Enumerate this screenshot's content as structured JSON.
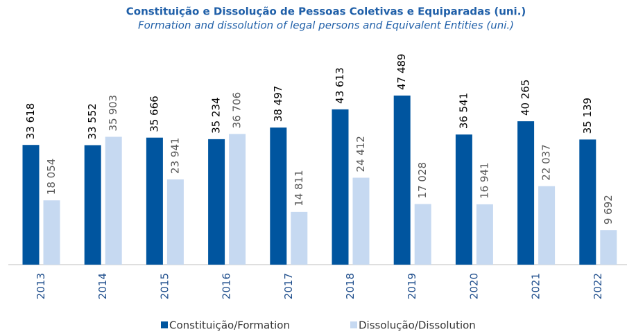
{
  "chart_data": {
    "type": "bar",
    "title": "Constituição e Dissolução de Pessoas Coletivas e Equiparadas (uni.)",
    "subtitle": "Formation and dissolution of legal persons and Equivalent Entities (uni.)",
    "categories": [
      "2013",
      "2014",
      "2015",
      "2016",
      "2017",
      "2018",
      "2019",
      "2020",
      "2021",
      "2022"
    ],
    "series": [
      {
        "name": "Constituição/Formation",
        "color": "#00559f",
        "values": [
          33618,
          33552,
          35666,
          35234,
          38497,
          43613,
          47489,
          36541,
          40265,
          35139
        ],
        "value_labels": [
          "33 618",
          "33 552",
          "35 666",
          "35 234",
          "38 497",
          "43 613",
          "47 489",
          "36 541",
          "40 265",
          "35 139"
        ]
      },
      {
        "name": "Dissolução/Dissolution",
        "color": "#c6d9f1",
        "values": [
          18054,
          35903,
          23941,
          36706,
          14811,
          24412,
          17028,
          16941,
          22037,
          9692
        ],
        "value_labels": [
          "18 054",
          "35 903",
          "23 941",
          "36 706",
          "14 811",
          "24 412",
          "17 028",
          "16 941",
          "22 037",
          "9 692"
        ]
      }
    ],
    "ylim": [
      0,
      50000
    ]
  }
}
